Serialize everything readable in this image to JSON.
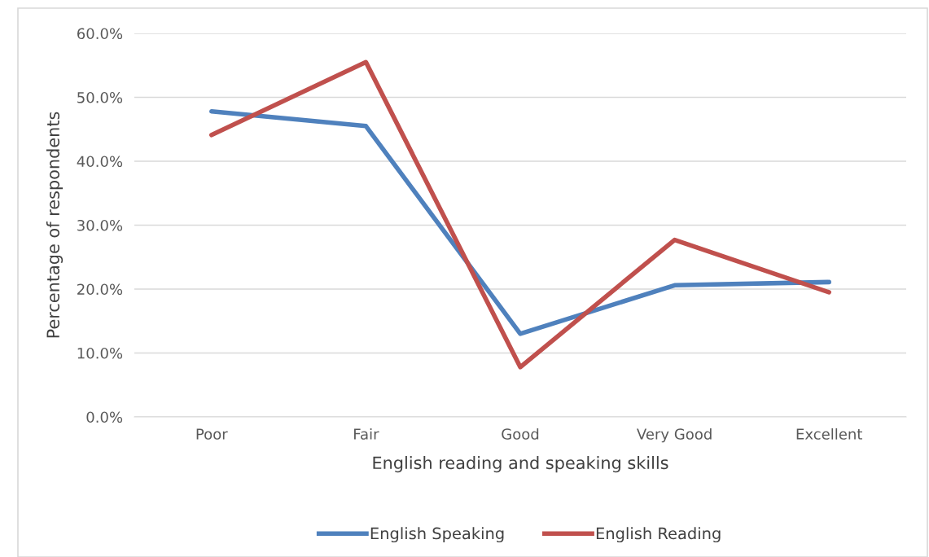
{
  "chart_data": {
    "type": "line",
    "xlabel": "English reading and speaking skills",
    "ylabel": "Percentage of respondents",
    "categories": [
      "Poor",
      "Fair",
      "Good",
      "Very Good",
      "Excellent"
    ],
    "series": [
      {
        "name": "English Speaking",
        "color": "#4f81bd",
        "values": [
          47.8,
          45.5,
          13.0,
          20.6,
          21.1
        ]
      },
      {
        "name": "English Reading",
        "color": "#c0504d",
        "values": [
          44.1,
          55.5,
          7.8,
          27.7,
          19.5
        ]
      }
    ],
    "ylim": [
      0,
      60
    ],
    "yticks": [
      {
        "value": 0,
        "label": "0.0%"
      },
      {
        "value": 10,
        "label": "10.0%"
      },
      {
        "value": 20,
        "label": "20.0%"
      },
      {
        "value": 30,
        "label": "30.0%"
      },
      {
        "value": 40,
        "label": "40.0%"
      },
      {
        "value": 50,
        "label": "50.0%"
      },
      {
        "value": 60,
        "label": "60.0%"
      }
    ],
    "grid": "y",
    "legend": "bottom",
    "marker": "none",
    "line_style": "solid"
  }
}
